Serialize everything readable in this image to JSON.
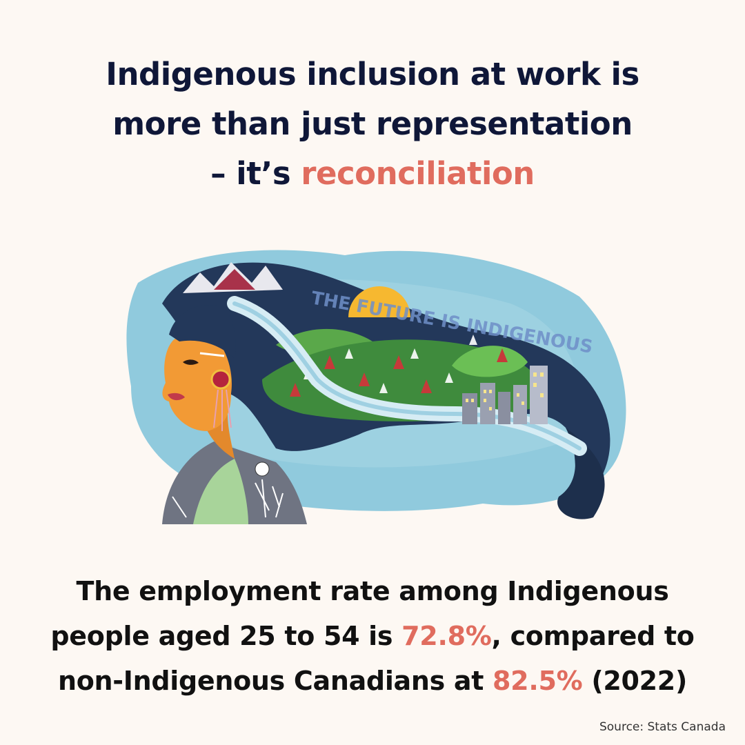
{
  "headline": {
    "line1": "Indigenous inclusion at work is",
    "line2": "more than just representation",
    "line3_prefix": "– it’s ",
    "line3_accent": "reconciliation"
  },
  "illustration": {
    "hair_text": "THE FUTURE IS INDIGENOUS"
  },
  "stat": {
    "line1": "The employment rate among Indigenous",
    "line2_prefix": "people aged 25 to 54 is ",
    "indigenous_rate": "72.8%",
    "line2_suffix": ", compared to",
    "line3_prefix": "non-Indigenous Canadians at ",
    "non_indigenous_rate": "82.5%",
    "line3_suffix": " (2022)"
  },
  "source": "Source: Stats Canada",
  "colors": {
    "background": "#fdf8f3",
    "headline": "#0f1738",
    "accent": "#e06c5e",
    "body_text": "#111111"
  }
}
